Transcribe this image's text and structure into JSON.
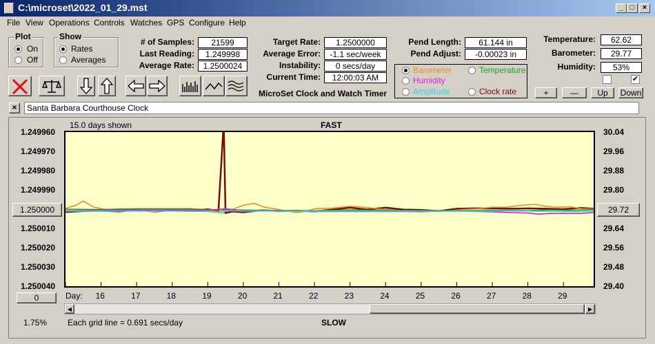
{
  "window": {
    "title": "C:\\microset\\2022_01_29.mst"
  },
  "menu": [
    "File",
    "View",
    "Operations",
    "Controls",
    "Watches",
    "GPS",
    "Configure",
    "Help"
  ],
  "plot_group": {
    "title": "Plot",
    "on": "On",
    "off": "Off",
    "selected": "On"
  },
  "show_group": {
    "title": "Show",
    "rates": "Rates",
    "averages": "Averages",
    "selected": "Rates"
  },
  "stats": {
    "samples_label": "# of Samples:",
    "samples": "21599",
    "last_label": "Last Reading:",
    "last": "1.249998",
    "avg_label": "Average Rate:",
    "avg": "1.2500024"
  },
  "timing": {
    "target_label": "Target Rate:",
    "target": "1.2500000",
    "error_label": "Average Error:",
    "error": "-1.1 sec/week",
    "instability_label": "Instability:",
    "instability": "0 secs/day",
    "time_label": "Current Time:",
    "time": "12:00:03 AM"
  },
  "app_caption": "MicroSet Clock and Watch Timer",
  "pend": {
    "length_label": "Pend Length:",
    "length": "61.144 in",
    "adjust_label": "Pend Adjust:",
    "adjust": "-0.00023 in"
  },
  "sensor_select": {
    "barometer": "Barometer",
    "temperature": "Temperature",
    "humidity": "Humidity",
    "amplitude": "Amplitude",
    "clock_rate": "Clock rate",
    "selected": "Barometer"
  },
  "environment": {
    "temp_label": "Temperature:",
    "temp": "62.62",
    "baro_label": "Barometer:",
    "baro": "29.77",
    "hum_label": "Humidity:",
    "hum": "53%",
    "check1": false,
    "check2": true
  },
  "nav_buttons": {
    "plus": "+",
    "minus": "—",
    "up": "Up",
    "down": "Down"
  },
  "clock_name": {
    "close": "×",
    "value": "Santa Barbara Courthouse Clock"
  },
  "chart_data": {
    "type": "line",
    "top_label": "FAST",
    "bottom_label": "SLOW",
    "days_shown": "15.0 days shown",
    "grid_note": "Each grid line = 0.691 secs/day",
    "left_ticks": [
      "1.249960",
      "1.249970",
      "1.249980",
      "1.249990",
      "1.250000",
      "1.250010",
      "1.250020",
      "1.250030",
      "1.250040"
    ],
    "right_ticks": [
      "30.04",
      "29.96",
      "29.88",
      "29.80",
      "29.72",
      "29.64",
      "29.56",
      "29.48",
      "29.40"
    ],
    "left_center_button": "1.250000",
    "right_center_button": "29.72",
    "zero_button": "0",
    "percent": "1.75%",
    "x_label": "Day:",
    "x_ticks": [
      "16",
      "17",
      "18",
      "19",
      "20",
      "21",
      "22",
      "23",
      "24",
      "25",
      "26",
      "27",
      "28",
      "29"
    ],
    "x_range_days": [
      15.0,
      29.85
    ],
    "series": [
      {
        "color": "#7b0a0a",
        "points": [
          [
            15.0,
            1.2500015
          ],
          [
            15.5,
            1.250001
          ],
          [
            16.0,
            1.2500008
          ],
          [
            16.5,
            1.2500012
          ],
          [
            17.0,
            1.2500004
          ],
          [
            17.5,
            1.2500012
          ],
          [
            18.0,
            1.2500006
          ],
          [
            18.5,
            1.250001
          ],
          [
            19.0,
            1.25
          ],
          [
            19.3,
            1.250001
          ],
          [
            19.45,
            1.249955
          ],
          [
            19.5,
            1.250002
          ],
          [
            19.7,
            1.2500012
          ],
          [
            20.0,
            1.2500016
          ],
          [
            20.5,
            1.2500006
          ],
          [
            21.0,
            1.250001
          ],
          [
            21.5,
            1.2500008
          ],
          [
            22.0,
            1.2500012
          ],
          [
            22.5,
            1.2500002
          ],
          [
            23.0,
            1.2499992
          ],
          [
            23.5,
            1.2500002
          ],
          [
            24.0,
            1.2499992
          ],
          [
            24.5,
            1.2500002
          ],
          [
            25.0,
            1.2500004
          ],
          [
            25.5,
            1.250001
          ],
          [
            26.0,
            1.2499998
          ],
          [
            26.5,
            1.2499996
          ],
          [
            27.0,
            1.2499996
          ],
          [
            27.5,
            1.2499998
          ],
          [
            28.0,
            1.2499996
          ],
          [
            28.5,
            1.2499998
          ],
          [
            29.0,
            1.25
          ],
          [
            29.5,
            1.2499994
          ],
          [
            29.85,
            1.2499998
          ]
        ]
      },
      {
        "color": "#f08c1e",
        "points": [
          [
            15.0,
            1.2499996
          ],
          [
            15.3,
            1.249998
          ],
          [
            15.5,
            1.2499958
          ],
          [
            15.8,
            1.249999
          ],
          [
            16.2,
            1.2500004
          ],
          [
            16.6,
            1.2499998
          ],
          [
            17.0,
            1.2500006
          ],
          [
            17.5,
            1.2500012
          ],
          [
            18.0,
            1.25
          ],
          [
            18.5,
            1.2499996
          ],
          [
            19.0,
            1.2500008
          ],
          [
            19.3,
            1.2500012
          ],
          [
            19.6,
            1.2500008
          ],
          [
            20.0,
            1.249998
          ],
          [
            20.3,
            1.249997
          ],
          [
            20.6,
            1.249999
          ],
          [
            21.0,
            1.2500002
          ],
          [
            21.3,
            1.2500012
          ],
          [
            21.5,
            1.2500018
          ],
          [
            21.8,
            1.250001
          ],
          [
            22.0,
            1.2499998
          ],
          [
            22.5,
            1.2499995
          ],
          [
            23.0,
            1.2499985
          ],
          [
            23.4,
            1.249999
          ],
          [
            23.8,
            1.2499999
          ],
          [
            24.2,
            1.2500003
          ],
          [
            24.6,
            1.2500012
          ],
          [
            25.0,
            1.2500014
          ],
          [
            25.4,
            1.250001
          ],
          [
            25.8,
            1.2500008
          ],
          [
            26.2,
            1.2500001
          ],
          [
            26.6,
            1.2499998
          ],
          [
            27.0,
            1.249999
          ],
          [
            27.4,
            1.249999
          ],
          [
            27.8,
            1.249998
          ],
          [
            28.2,
            1.2499975
          ],
          [
            28.5,
            1.2499985
          ],
          [
            28.8,
            1.249999
          ],
          [
            29.2,
            1.2499988
          ],
          [
            29.5,
            1.2499998
          ],
          [
            29.85,
            1.25
          ]
        ]
      },
      {
        "color": "#1ea01e",
        "points": [
          [
            15.0,
            1.25
          ],
          [
            16.0,
            1.2500002
          ],
          [
            17.0,
            1.2499998
          ],
          [
            18.0,
            1.2499998
          ],
          [
            18.7,
            1.25
          ],
          [
            19.5,
            1.2500004
          ],
          [
            20.5,
            1.2500006
          ],
          [
            21.5,
            1.2500008
          ],
          [
            22.0,
            1.2500008
          ],
          [
            22.5,
            1.2500006
          ],
          [
            23.0,
            1.2500004
          ],
          [
            24.0,
            1.2500006
          ],
          [
            25.0,
            1.2500008
          ],
          [
            26.0,
            1.2500008
          ],
          [
            27.0,
            1.2500006
          ],
          [
            28.0,
            1.2500008
          ],
          [
            28.6,
            1.2500004
          ],
          [
            29.2,
            1.2500006
          ],
          [
            29.85,
            1.2500004
          ]
        ]
      },
      {
        "color": "#dc1edc",
        "points": [
          [
            15.0,
            1.2500008
          ],
          [
            16.0,
            1.2500006
          ],
          [
            17.0,
            1.2500004
          ],
          [
            18.0,
            1.2500004
          ],
          [
            19.0,
            1.2500006
          ],
          [
            19.5,
            1.2499998
          ],
          [
            20.0,
            1.2500008
          ],
          [
            21.0,
            1.2500008
          ],
          [
            22.0,
            1.2500012
          ],
          [
            23.0,
            1.2500012
          ],
          [
            24.0,
            1.2500012
          ],
          [
            25.0,
            1.2500012
          ],
          [
            26.0,
            1.250001
          ],
          [
            26.6,
            1.2500012
          ],
          [
            27.0,
            1.2500014
          ],
          [
            27.5,
            1.2500018
          ],
          [
            28.0,
            1.250002
          ],
          [
            28.3,
            1.2500026
          ],
          [
            28.6,
            1.2500022
          ],
          [
            29.0,
            1.2500022
          ],
          [
            29.5,
            1.2500022
          ],
          [
            29.85,
            1.2500018
          ]
        ]
      },
      {
        "color": "#28dcdc",
        "points": [
          [
            15.0,
            1.250001
          ],
          [
            16.0,
            1.250001
          ],
          [
            17.0,
            1.250001
          ],
          [
            18.0,
            1.250001
          ],
          [
            19.0,
            1.2500012
          ],
          [
            19.45,
            1.250002
          ],
          [
            19.5,
            1.2500008
          ],
          [
            20.0,
            1.250001
          ],
          [
            21.0,
            1.250001
          ],
          [
            22.0,
            1.250001
          ],
          [
            23.0,
            1.250001
          ],
          [
            24.0,
            1.250001
          ],
          [
            25.0,
            1.250001
          ],
          [
            26.0,
            1.250001
          ],
          [
            27.0,
            1.250001
          ],
          [
            28.0,
            1.250001
          ],
          [
            29.0,
            1.2500012
          ],
          [
            29.85,
            1.2500012
          ]
        ]
      }
    ]
  }
}
